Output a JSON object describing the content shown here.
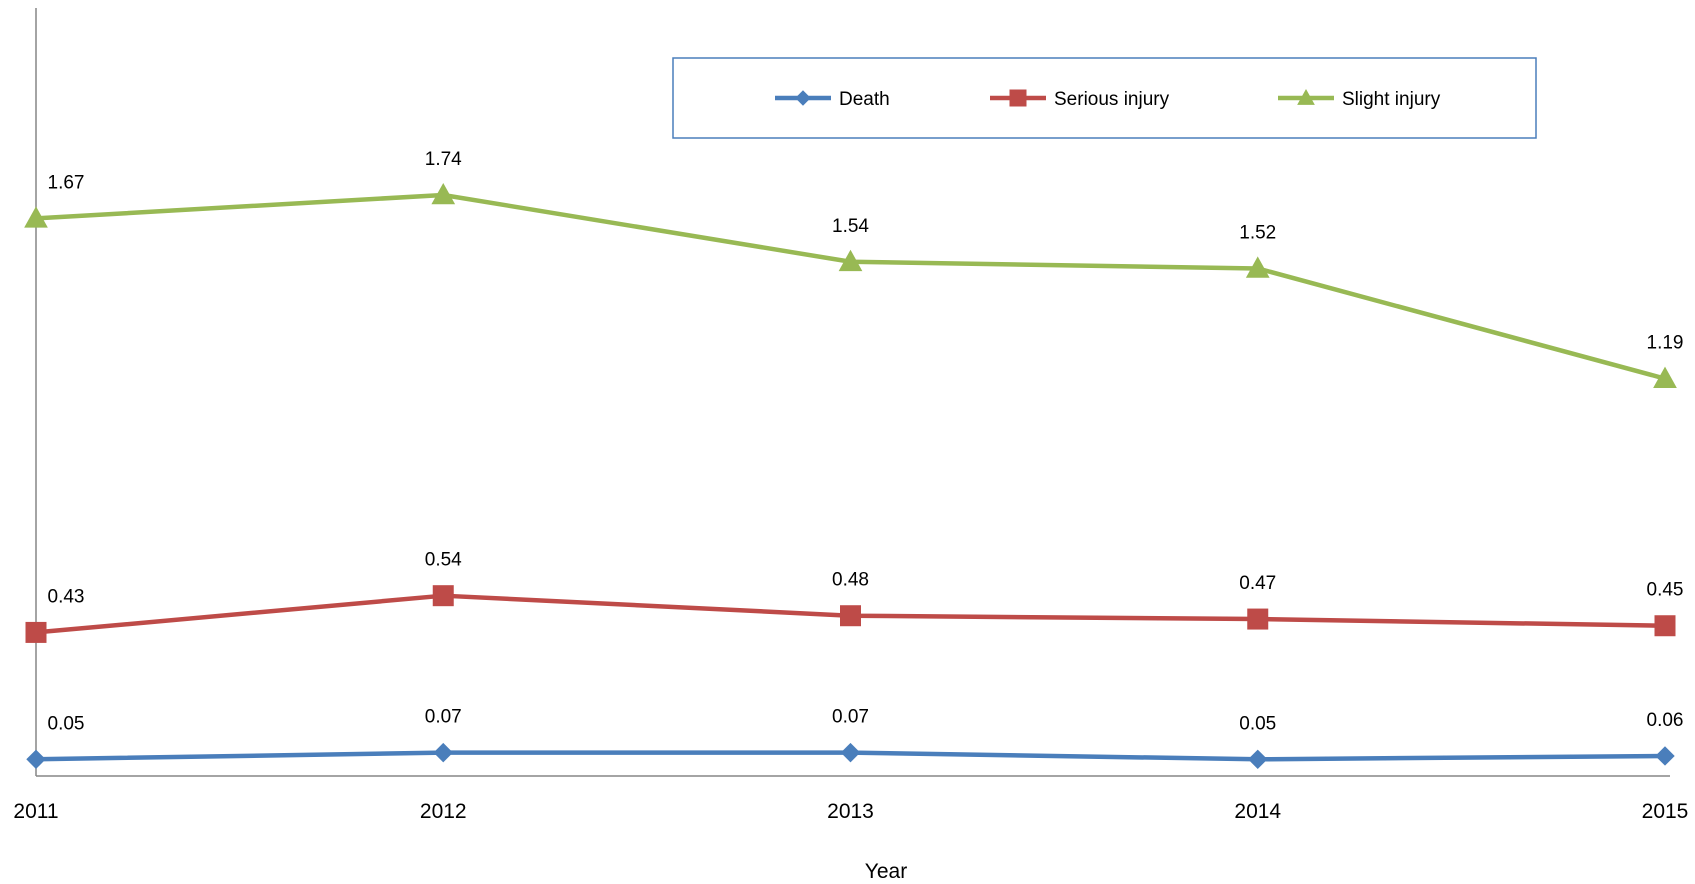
{
  "chart_data": {
    "type": "line",
    "categories": [
      "2011",
      "2012",
      "2013",
      "2014",
      "2015"
    ],
    "xlabel": "Year",
    "ylabel": "",
    "ylim": [
      0,
      2.3
    ],
    "grid": false,
    "legend_position": "top-right",
    "series": [
      {
        "name": "Death",
        "values": [
          0.05,
          0.07,
          0.07,
          0.05,
          0.06
        ],
        "labels": [
          "0.05",
          "0.07",
          "0.07",
          "0.05",
          "0.06"
        ],
        "color": "#4a7ebb",
        "marker": "diamond"
      },
      {
        "name": "Serious injury",
        "values": [
          0.43,
          0.54,
          0.48,
          0.47,
          0.45
        ],
        "labels": [
          "0.43",
          "0.54",
          "0.48",
          "0.47",
          "0.45"
        ],
        "color": "#be4b48",
        "marker": "square"
      },
      {
        "name": "Slight injury",
        "values": [
          1.67,
          1.74,
          1.54,
          1.52,
          1.19
        ],
        "labels": [
          "1.67",
          "1.74",
          "1.54",
          "1.52",
          "1.19"
        ],
        "color": "#98b954",
        "marker": "triangle"
      }
    ]
  }
}
